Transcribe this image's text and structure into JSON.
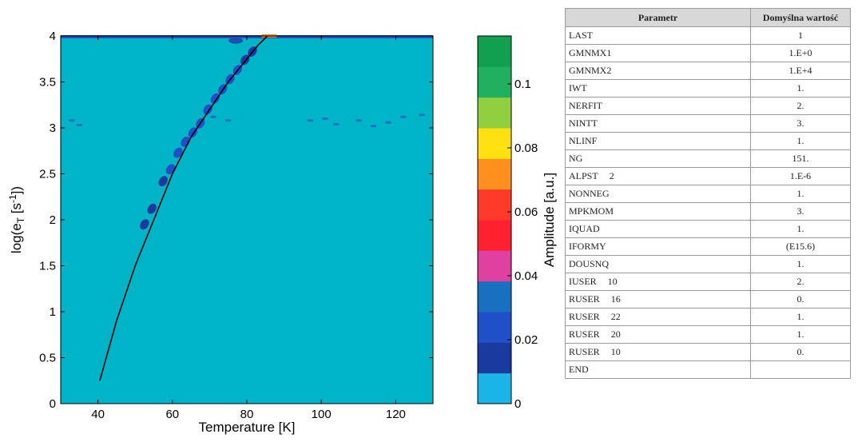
{
  "chart_data": {
    "type": "heatmap",
    "title": "",
    "xlabel": "Temperature  [K]",
    "ylabel": "log(e_T  [s^-1])",
    "xlim": [
      30,
      130
    ],
    "ylim": [
      0,
      4
    ],
    "xticks": [
      "40",
      "60",
      "80",
      "100",
      "120"
    ],
    "yticks": [
      "0",
      "0.5",
      "1",
      "1.5",
      "2",
      "2.5",
      "3",
      "3.5",
      "4"
    ],
    "colorbar": {
      "label": "Amplitude [a.u.]",
      "range": [
        0,
        0.115
      ],
      "ticks": [
        "0",
        "0.02",
        "0.04",
        "0.06",
        "0.08",
        "0.1"
      ],
      "colors": [
        "#1ab4e6",
        "#1a3aa0",
        "#2050c8",
        "#1870c0",
        "#e040a0",
        "#ff2030",
        "#ff3a28",
        "#ff9020",
        "#ffe010",
        "#90d040",
        "#20b060",
        "#10a050"
      ]
    },
    "background_value": 0.0,
    "background_color": "#00b4c8",
    "fit_curve": {
      "name": "",
      "x": [
        40.5,
        45,
        50,
        55,
        60,
        65,
        70,
        75,
        80,
        83,
        85.5
      ],
      "y": [
        0.25,
        0.9,
        1.5,
        2.0,
        2.5,
        2.9,
        3.2,
        3.5,
        3.75,
        3.9,
        4.0
      ]
    },
    "peak_points": [
      {
        "x": 52.5,
        "y": 1.95,
        "v": 0.012
      },
      {
        "x": 54.5,
        "y": 2.12,
        "v": 0.014
      },
      {
        "x": 57.5,
        "y": 2.42,
        "v": 0.018
      },
      {
        "x": 59.5,
        "y": 2.55,
        "v": 0.02
      },
      {
        "x": 61.5,
        "y": 2.73,
        "v": 0.022
      },
      {
        "x": 63.5,
        "y": 2.85,
        "v": 0.022
      },
      {
        "x": 65.5,
        "y": 2.95,
        "v": 0.022
      },
      {
        "x": 67.5,
        "y": 3.05,
        "v": 0.02
      },
      {
        "x": 69.5,
        "y": 3.2,
        "v": 0.022
      },
      {
        "x": 71.5,
        "y": 3.32,
        "v": 0.022
      },
      {
        "x": 73.5,
        "y": 3.42,
        "v": 0.02
      },
      {
        "x": 75.5,
        "y": 3.53,
        "v": 0.02
      },
      {
        "x": 77.5,
        "y": 3.63,
        "v": 0.02
      },
      {
        "x": 79.5,
        "y": 3.74,
        "v": 0.018
      },
      {
        "x": 81.5,
        "y": 3.83,
        "v": 0.016
      }
    ],
    "scatter_points": [
      {
        "x": 33,
        "y": 3.08
      },
      {
        "x": 35,
        "y": 3.03
      },
      {
        "x": 71,
        "y": 3.12
      },
      {
        "x": 75,
        "y": 3.08
      },
      {
        "x": 97,
        "y": 3.08
      },
      {
        "x": 101,
        "y": 3.1
      },
      {
        "x": 104,
        "y": 3.04
      },
      {
        "x": 110,
        "y": 3.08
      },
      {
        "x": 114,
        "y": 3.02
      },
      {
        "x": 118,
        "y": 3.06
      },
      {
        "x": 122,
        "y": 3.12
      },
      {
        "x": 127,
        "y": 3.14
      }
    ]
  },
  "table": {
    "headers": [
      "Parametr",
      "Domyślna wartość"
    ],
    "rows": [
      {
        "name": "LAST",
        "num": "",
        "value": "1"
      },
      {
        "name": "GMNMX1",
        "num": "",
        "value": "1.E+0"
      },
      {
        "name": "GMNMX2",
        "num": "",
        "value": "1.E+4"
      },
      {
        "name": "IWT",
        "num": "",
        "value": "1."
      },
      {
        "name": "NERFIT",
        "num": "",
        "value": "2."
      },
      {
        "name": "NINTT",
        "num": "",
        "value": "3."
      },
      {
        "name": "NLINF",
        "num": "",
        "value": "1."
      },
      {
        "name": "NG",
        "num": "",
        "value": "151."
      },
      {
        "name": "ALPST",
        "num": "2",
        "value": "1.E-6"
      },
      {
        "name": "NONNEG",
        "num": "",
        "value": "1."
      },
      {
        "name": "MPKMOM",
        "num": "",
        "value": "3."
      },
      {
        "name": "IQUAD",
        "num": "",
        "value": "1."
      },
      {
        "name": "IFORMY",
        "num": "",
        "value": "(E15.6)"
      },
      {
        "name": "DOUSNQ",
        "num": "",
        "value": "1."
      },
      {
        "name": "IUSER",
        "num": "10",
        "value": "2."
      },
      {
        "name": "RUSER",
        "num": "16",
        "value": "0."
      },
      {
        "name": "RUSER",
        "num": "22",
        "value": "1."
      },
      {
        "name": "RUSER",
        "num": "20",
        "value": "1."
      },
      {
        "name": "RUSER",
        "num": "10",
        "value": "0."
      },
      {
        "name": "END",
        "num": "",
        "value": ""
      }
    ]
  }
}
